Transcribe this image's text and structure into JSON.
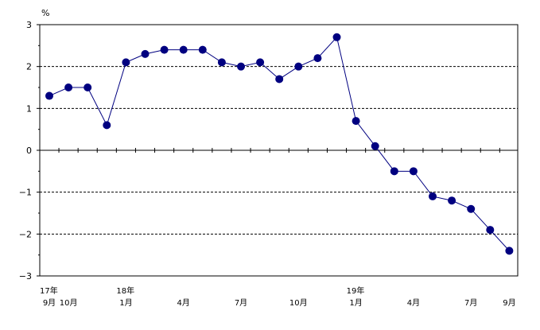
{
  "chart_data": {
    "type": "line",
    "ylabel": "%",
    "ylim": [
      -3,
      3
    ],
    "yticks": [
      "3",
      "2",
      "1",
      "0",
      "−1",
      "−2",
      "−3"
    ],
    "grid": "dashed horizontal at ±1, ±2",
    "x_labels": [
      {
        "index": 0,
        "top": "17年",
        "bottom": "9月"
      },
      {
        "index": 1,
        "top": "",
        "bottom": "10月"
      },
      {
        "index": 4,
        "top": "18年",
        "bottom": "1月"
      },
      {
        "index": 7,
        "top": "",
        "bottom": "4月"
      },
      {
        "index": 10,
        "top": "",
        "bottom": "7月"
      },
      {
        "index": 13,
        "top": "",
        "bottom": "10月"
      },
      {
        "index": 16,
        "top": "19年",
        "bottom": "1月"
      },
      {
        "index": 19,
        "top": "",
        "bottom": "4月"
      },
      {
        "index": 22,
        "top": "",
        "bottom": "7月"
      },
      {
        "index": 24,
        "top": "",
        "bottom": "9月"
      }
    ],
    "series": [
      {
        "color": "#000080",
        "values": [
          1.3,
          1.5,
          1.5,
          0.6,
          2.1,
          2.3,
          2.4,
          2.4,
          2.4,
          2.1,
          2.0,
          2.1,
          1.7,
          2.0,
          2.2,
          2.7,
          0.7,
          0.1,
          -0.5,
          -0.5,
          -1.1,
          -1.2,
          -1.4,
          -1.9,
          -2.4
        ]
      }
    ]
  }
}
